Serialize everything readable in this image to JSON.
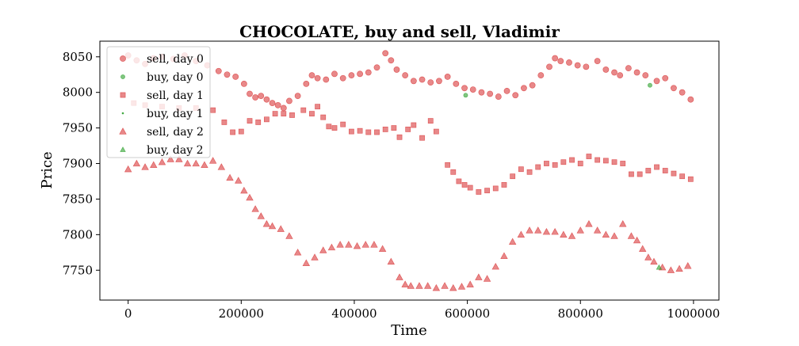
{
  "chart_data": {
    "type": "scatter",
    "title": "CHOCOLATE, buy and sell, Vladimir",
    "xlabel": "Time",
    "ylabel": "Price",
    "xlim": [
      -50000,
      1045000
    ],
    "ylim": [
      7708,
      8072
    ],
    "x_ticks": [
      0,
      200000,
      400000,
      600000,
      800000,
      1000000
    ],
    "x_tick_labels": [
      "0",
      "200000",
      "400000",
      "600000",
      "800000",
      "1000000"
    ],
    "y_ticks": [
      7750,
      7800,
      7850,
      7900,
      7950,
      8000,
      8050
    ],
    "y_tick_labels": [
      "7750",
      "7800",
      "7850",
      "7900",
      "7950",
      "8000",
      "8050"
    ],
    "grid": false,
    "legend_position": "top-left",
    "series": [
      {
        "name": "sell, day 0",
        "marker": "circle",
        "color": "#d62728",
        "opacity": 0.55,
        "points": [
          [
            0,
            8052
          ],
          [
            15000,
            8045
          ],
          [
            30000,
            8040
          ],
          [
            45000,
            8048
          ],
          [
            60000,
            8050
          ],
          [
            80000,
            8047
          ],
          [
            100000,
            8052
          ],
          [
            120000,
            8044
          ],
          [
            140000,
            8038
          ],
          [
            160000,
            8030
          ],
          [
            175000,
            8025
          ],
          [
            190000,
            8022
          ],
          [
            205000,
            8012
          ],
          [
            215000,
            7998
          ],
          [
            225000,
            7993
          ],
          [
            235000,
            7995
          ],
          [
            245000,
            7990
          ],
          [
            255000,
            7985
          ],
          [
            265000,
            7982
          ],
          [
            275000,
            7978
          ],
          [
            285000,
            7988
          ],
          [
            300000,
            7995
          ],
          [
            315000,
            8012
          ],
          [
            325000,
            8024
          ],
          [
            335000,
            8020
          ],
          [
            350000,
            8018
          ],
          [
            365000,
            8026
          ],
          [
            380000,
            8020
          ],
          [
            395000,
            8024
          ],
          [
            410000,
            8026
          ],
          [
            425000,
            8028
          ],
          [
            440000,
            8035
          ],
          [
            455000,
            8055
          ],
          [
            465000,
            8045
          ],
          [
            475000,
            8032
          ],
          [
            490000,
            8024
          ],
          [
            505000,
            8016
          ],
          [
            520000,
            8018
          ],
          [
            535000,
            8014
          ],
          [
            550000,
            8016
          ],
          [
            565000,
            8022
          ],
          [
            580000,
            8012
          ],
          [
            595000,
            8006
          ],
          [
            610000,
            8004
          ],
          [
            625000,
            8000
          ],
          [
            640000,
            7998
          ],
          [
            655000,
            7994
          ],
          [
            670000,
            8002
          ],
          [
            685000,
            7996
          ],
          [
            700000,
            8006
          ],
          [
            715000,
            8010
          ],
          [
            730000,
            8024
          ],
          [
            745000,
            8036
          ],
          [
            755000,
            8048
          ],
          [
            765000,
            8044
          ],
          [
            780000,
            8042
          ],
          [
            795000,
            8038
          ],
          [
            810000,
            8036
          ],
          [
            830000,
            8044
          ],
          [
            845000,
            8032
          ],
          [
            860000,
            8028
          ],
          [
            870000,
            8024
          ],
          [
            885000,
            8034
          ],
          [
            900000,
            8028
          ],
          [
            915000,
            8024
          ],
          [
            935000,
            8016
          ],
          [
            950000,
            8020
          ],
          [
            965000,
            8006
          ],
          [
            980000,
            8000
          ],
          [
            995000,
            7990
          ]
        ]
      },
      {
        "name": "buy, day 0",
        "marker": "circle-small",
        "color": "#2ca02c",
        "opacity": 0.6,
        "points": [
          [
            597000,
            7996
          ],
          [
            923000,
            8010
          ]
        ]
      },
      {
        "name": "sell, day 1",
        "marker": "square",
        "color": "#d62728",
        "opacity": 0.55,
        "points": [
          [
            10000,
            7985
          ],
          [
            30000,
            7982
          ],
          [
            60000,
            7980
          ],
          [
            90000,
            7978
          ],
          [
            120000,
            7978
          ],
          [
            150000,
            7975
          ],
          [
            170000,
            7958
          ],
          [
            185000,
            7944
          ],
          [
            200000,
            7945
          ],
          [
            215000,
            7960
          ],
          [
            230000,
            7958
          ],
          [
            245000,
            7962
          ],
          [
            260000,
            7970
          ],
          [
            275000,
            7970
          ],
          [
            290000,
            7968
          ],
          [
            310000,
            7975
          ],
          [
            325000,
            7970
          ],
          [
            335000,
            7980
          ],
          [
            345000,
            7965
          ],
          [
            355000,
            7952
          ],
          [
            365000,
            7950
          ],
          [
            380000,
            7955
          ],
          [
            395000,
            7945
          ],
          [
            410000,
            7946
          ],
          [
            425000,
            7944
          ],
          [
            440000,
            7944
          ],
          [
            455000,
            7948
          ],
          [
            470000,
            7950
          ],
          [
            480000,
            7937
          ],
          [
            495000,
            7948
          ],
          [
            505000,
            7954
          ],
          [
            520000,
            7936
          ],
          [
            535000,
            7960
          ],
          [
            545000,
            7945
          ],
          [
            565000,
            7898
          ],
          [
            575000,
            7888
          ],
          [
            585000,
            7875
          ],
          [
            595000,
            7870
          ],
          [
            605000,
            7866
          ],
          [
            620000,
            7860
          ],
          [
            635000,
            7862
          ],
          [
            650000,
            7865
          ],
          [
            665000,
            7870
          ],
          [
            680000,
            7882
          ],
          [
            695000,
            7892
          ],
          [
            710000,
            7888
          ],
          [
            725000,
            7895
          ],
          [
            740000,
            7900
          ],
          [
            755000,
            7898
          ],
          [
            770000,
            7902
          ],
          [
            785000,
            7905
          ],
          [
            800000,
            7900
          ],
          [
            815000,
            7910
          ],
          [
            830000,
            7905
          ],
          [
            845000,
            7904
          ],
          [
            860000,
            7902
          ],
          [
            875000,
            7900
          ],
          [
            890000,
            7885
          ],
          [
            905000,
            7885
          ],
          [
            920000,
            7890
          ],
          [
            935000,
            7895
          ],
          [
            950000,
            7890
          ],
          [
            965000,
            7886
          ],
          [
            980000,
            7882
          ],
          [
            995000,
            7878
          ]
        ]
      },
      {
        "name": "buy, day 1",
        "marker": "dot",
        "color": "#2ca02c",
        "opacity": 0.8,
        "points": []
      },
      {
        "name": "sell, day 2",
        "marker": "triangle",
        "color": "#d62728",
        "opacity": 0.55,
        "points": [
          [
            0,
            7892
          ],
          [
            15000,
            7900
          ],
          [
            30000,
            7895
          ],
          [
            45000,
            7898
          ],
          [
            60000,
            7902
          ],
          [
            75000,
            7906
          ],
          [
            90000,
            7906
          ],
          [
            105000,
            7900
          ],
          [
            120000,
            7900
          ],
          [
            135000,
            7898
          ],
          [
            150000,
            7904
          ],
          [
            165000,
            7895
          ],
          [
            180000,
            7880
          ],
          [
            195000,
            7876
          ],
          [
            205000,
            7862
          ],
          [
            215000,
            7852
          ],
          [
            225000,
            7836
          ],
          [
            235000,
            7826
          ],
          [
            245000,
            7815
          ],
          [
            255000,
            7812
          ],
          [
            270000,
            7808
          ],
          [
            285000,
            7798
          ],
          [
            300000,
            7775
          ],
          [
            315000,
            7760
          ],
          [
            330000,
            7768
          ],
          [
            345000,
            7778
          ],
          [
            360000,
            7782
          ],
          [
            375000,
            7786
          ],
          [
            390000,
            7786
          ],
          [
            405000,
            7784
          ],
          [
            420000,
            7786
          ],
          [
            435000,
            7786
          ],
          [
            450000,
            7780
          ],
          [
            465000,
            7762
          ],
          [
            480000,
            7740
          ],
          [
            490000,
            7730
          ],
          [
            500000,
            7728
          ],
          [
            515000,
            7728
          ],
          [
            530000,
            7728
          ],
          [
            545000,
            7725
          ],
          [
            560000,
            7728
          ],
          [
            575000,
            7725
          ],
          [
            590000,
            7727
          ],
          [
            605000,
            7730
          ],
          [
            620000,
            7740
          ],
          [
            635000,
            7738
          ],
          [
            650000,
            7755
          ],
          [
            665000,
            7770
          ],
          [
            680000,
            7790
          ],
          [
            695000,
            7800
          ],
          [
            710000,
            7806
          ],
          [
            725000,
            7806
          ],
          [
            740000,
            7804
          ],
          [
            755000,
            7804
          ],
          [
            770000,
            7800
          ],
          [
            785000,
            7798
          ],
          [
            800000,
            7806
          ],
          [
            815000,
            7815
          ],
          [
            830000,
            7806
          ],
          [
            845000,
            7800
          ],
          [
            860000,
            7798
          ],
          [
            875000,
            7815
          ],
          [
            890000,
            7798
          ],
          [
            900000,
            7792
          ],
          [
            910000,
            7780
          ],
          [
            920000,
            7768
          ],
          [
            930000,
            7762
          ],
          [
            945000,
            7754
          ],
          [
            960000,
            7750
          ],
          [
            975000,
            7752
          ],
          [
            990000,
            7756
          ]
        ]
      },
      {
        "name": "buy, day 2",
        "marker": "triangle-small",
        "color": "#2ca02c",
        "opacity": 0.6,
        "points": [
          [
            939000,
            7754
          ]
        ]
      }
    ]
  }
}
